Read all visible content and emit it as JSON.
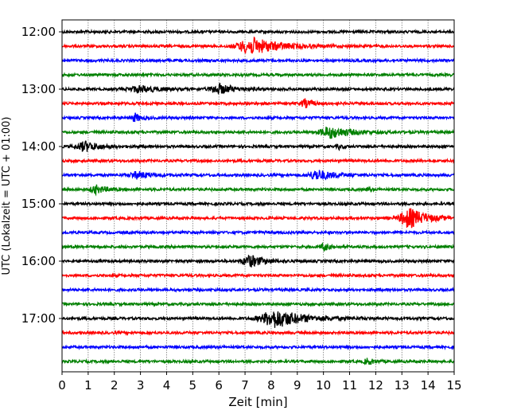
{
  "chart_data": {
    "type": "line",
    "title": "",
    "xlabel": "Zeit  [min]",
    "ylabel": "UTC (Lokalzeit = UTC + 01:00)",
    "xlim": [
      0,
      15
    ],
    "x_ticks": [
      "0",
      "1",
      "2",
      "3",
      "4",
      "5",
      "6",
      "7",
      "8",
      "9",
      "10",
      "11",
      "12",
      "13",
      "14",
      "15"
    ],
    "y_ticks": [
      "12:00",
      "13:00",
      "14:00",
      "15:00",
      "16:00",
      "17:00"
    ],
    "grid": "vertical dotted at each minute",
    "trace_interval_min": 15,
    "trace_colors": [
      "#000000",
      "#ff0000",
      "#0000ff",
      "#008000"
    ],
    "traces": [
      {
        "start": "12:00",
        "events": []
      },
      {
        "start": "12:15",
        "events": [
          {
            "t": 7.3,
            "amp": 10,
            "dur": 2.2
          }
        ]
      },
      {
        "start": "12:30",
        "events": []
      },
      {
        "start": "12:45",
        "events": []
      },
      {
        "start": "13:00",
        "events": [
          {
            "t": 3.0,
            "amp": 4,
            "dur": 1.6
          },
          {
            "t": 6.0,
            "amp": 6,
            "dur": 1.2
          }
        ]
      },
      {
        "start": "13:15",
        "events": [
          {
            "t": 9.3,
            "amp": 5,
            "dur": 0.6
          }
        ]
      },
      {
        "start": "13:30",
        "events": [
          {
            "t": 2.8,
            "amp": 5,
            "dur": 0.5
          }
        ]
      },
      {
        "start": "13:45",
        "events": [
          {
            "t": 10.3,
            "amp": 7,
            "dur": 1.6
          }
        ]
      },
      {
        "start": "14:00",
        "events": [
          {
            "t": 0.9,
            "amp": 6,
            "dur": 1.2
          },
          {
            "t": 10.6,
            "amp": 3,
            "dur": 0.3
          }
        ]
      },
      {
        "start": "14:15",
        "events": []
      },
      {
        "start": "14:30",
        "events": [
          {
            "t": 2.9,
            "amp": 4,
            "dur": 1.2
          },
          {
            "t": 9.8,
            "amp": 6,
            "dur": 1.4
          }
        ]
      },
      {
        "start": "14:45",
        "events": [
          {
            "t": 1.3,
            "amp": 5,
            "dur": 0.8
          },
          {
            "t": 11.7,
            "amp": 2,
            "dur": 0.3
          }
        ]
      },
      {
        "start": "15:00",
        "events": []
      },
      {
        "start": "15:15",
        "events": [
          {
            "t": 13.3,
            "amp": 12,
            "dur": 1.4
          }
        ]
      },
      {
        "start": "15:30",
        "events": []
      },
      {
        "start": "15:45",
        "events": [
          {
            "t": 10.0,
            "amp": 5,
            "dur": 0.4
          }
        ]
      },
      {
        "start": "16:00",
        "events": [
          {
            "t": 7.2,
            "amp": 7,
            "dur": 1.2
          }
        ]
      },
      {
        "start": "16:15",
        "events": []
      },
      {
        "start": "16:30",
        "events": []
      },
      {
        "start": "16:45",
        "events": []
      },
      {
        "start": "17:00",
        "events": [
          {
            "t": 8.2,
            "amp": 11,
            "dur": 2.2
          }
        ]
      },
      {
        "start": "17:15",
        "events": []
      },
      {
        "start": "17:30",
        "events": []
      },
      {
        "start": "17:45",
        "events": [
          {
            "t": 11.7,
            "amp": 4,
            "dur": 0.5
          }
        ]
      }
    ]
  }
}
